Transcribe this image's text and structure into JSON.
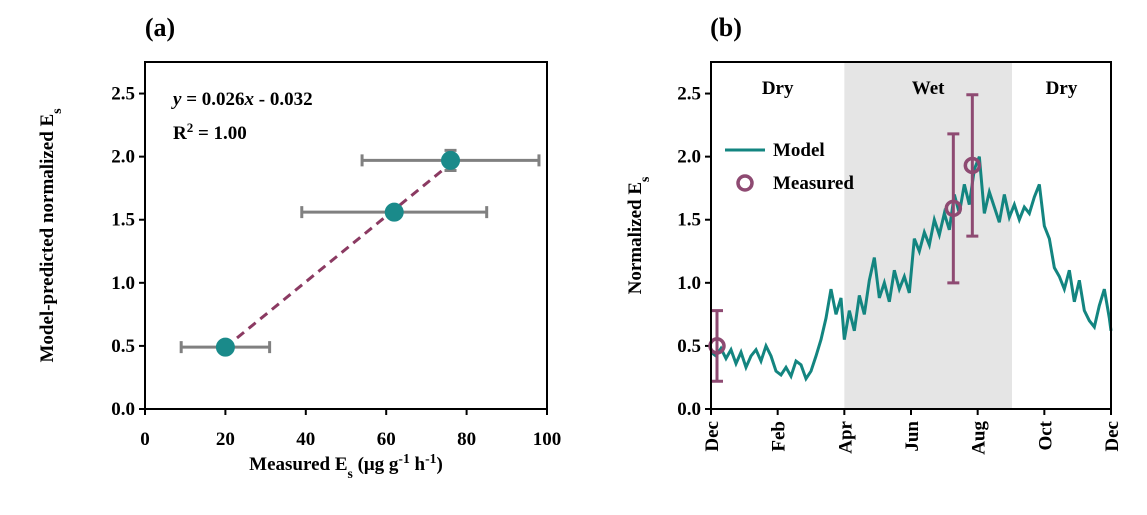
{
  "chart_data": [
    {
      "type": "scatter",
      "title": "(a)",
      "xlabel": [
        {
          "text": "Measured E"
        },
        {
          "text": "s",
          "shift": "sub"
        },
        {
          "text": " (μg g"
        },
        {
          "text": "-1",
          "shift": "super"
        },
        {
          "text": " h"
        },
        {
          "text": "-1",
          "shift": "super"
        },
        {
          "text": ")"
        }
      ],
      "ylabel": [
        {
          "text": "Model-predicted normalized E"
        },
        {
          "text": "s",
          "shift": "sub"
        }
      ],
      "xlim": [
        0,
        100
      ],
      "xticks": [
        0,
        20,
        40,
        60,
        80,
        100
      ],
      "ylim": [
        0,
        2.75
      ],
      "yticks": [
        {
          "value": 0,
          "label": "0.0"
        },
        {
          "value": 0.5,
          "label": "0.5"
        },
        {
          "value": 1,
          "label": "1.0"
        },
        {
          "value": 1.5,
          "label": "1.5"
        },
        {
          "value": 2,
          "label": "2.0"
        },
        {
          "value": 2.5,
          "label": "2.5"
        }
      ],
      "annotations": [
        [
          {
            "text": "y",
            "italic": true
          },
          {
            "text": " = 0.026"
          },
          {
            "text": "x",
            "italic": true
          },
          {
            "text": " - 0.032"
          }
        ],
        [
          {
            "text": "R"
          },
          {
            "text": "2",
            "shift": "super"
          },
          {
            "text": " = 1.00"
          }
        ]
      ],
      "series": [
        {
          "line": "dashed",
          "color": "#8b3a62",
          "x": [
            20,
            76
          ],
          "values": [
            0.488,
            1.944
          ]
        },
        {
          "marker": "filled-circle",
          "color": "#1a8a8a",
          "error_color": "#808080",
          "x": [
            20,
            62,
            76
          ],
          "values": [
            0.49,
            1.56,
            1.97
          ],
          "xerr": [
            11,
            23,
            22
          ],
          "yerr": [
            0.03,
            0.03,
            0.08
          ]
        }
      ]
    },
    {
      "type": "line",
      "title": "(b)",
      "ylabel": [
        {
          "text": "Normalized E"
        },
        {
          "text": "s",
          "shift": "sub"
        }
      ],
      "xlim": [
        0,
        12
      ],
      "xticks": [
        {
          "value": 0,
          "label": "Dec"
        },
        {
          "value": 2,
          "label": "Feb"
        },
        {
          "value": 4,
          "label": "Apr"
        },
        {
          "value": 6,
          "label": "Jun"
        },
        {
          "value": 8,
          "label": "Aug"
        },
        {
          "value": 10,
          "label": "Oct"
        },
        {
          "value": 12,
          "label": "Dec"
        }
      ],
      "ylim": [
        0,
        2.75
      ],
      "yticks": [
        {
          "value": 0,
          "label": "0.0"
        },
        {
          "value": 0.5,
          "label": "0.5"
        },
        {
          "value": 1,
          "label": "1.0"
        },
        {
          "value": 1.5,
          "label": "1.5"
        },
        {
          "value": 2,
          "label": "2.0"
        },
        {
          "value": 2.5,
          "label": "2.5"
        }
      ],
      "regions": [
        {
          "label": "Dry",
          "range": [
            0,
            4
          ]
        },
        {
          "label": "Wet",
          "range": [
            4,
            9.03
          ],
          "color": "#e5e5e5"
        },
        {
          "label": "Dry",
          "range": [
            9.03,
            12
          ]
        }
      ],
      "legend": "upper left",
      "series": [
        {
          "name": "Model",
          "line": "solid",
          "color": "#138580",
          "x": [
            0,
            0.15,
            0.3,
            0.45,
            0.6,
            0.75,
            0.9,
            1.05,
            1.2,
            1.35,
            1.5,
            1.65,
            1.8,
            1.95,
            2.1,
            2.25,
            2.4,
            2.55,
            2.7,
            2.85,
            3.0,
            3.15,
            3.3,
            3.45,
            3.6,
            3.75,
            3.9,
            4.0,
            4.15,
            4.3,
            4.45,
            4.6,
            4.75,
            4.9,
            5.05,
            5.2,
            5.35,
            5.5,
            5.65,
            5.8,
            5.95,
            6.1,
            6.25,
            6.4,
            6.55,
            6.7,
            6.85,
            7.0,
            7.15,
            7.3,
            7.45,
            7.6,
            7.75,
            7.9,
            8.05,
            8.2,
            8.35,
            8.5,
            8.65,
            8.8,
            8.95,
            9.1,
            9.25,
            9.4,
            9.55,
            9.7,
            9.85,
            10.0,
            10.15,
            10.3,
            10.45,
            10.6,
            10.75,
            10.9,
            11.05,
            11.2,
            11.35,
            11.5,
            11.65,
            11.8,
            11.95,
            12.0
          ],
          "values": [
            0.45,
            0.42,
            0.48,
            0.4,
            0.47,
            0.36,
            0.45,
            0.33,
            0.42,
            0.47,
            0.38,
            0.5,
            0.42,
            0.3,
            0.27,
            0.33,
            0.26,
            0.38,
            0.35,
            0.24,
            0.3,
            0.42,
            0.55,
            0.72,
            0.95,
            0.75,
            0.88,
            0.55,
            0.78,
            0.62,
            0.9,
            0.75,
            1.02,
            1.2,
            0.88,
            1.0,
            0.85,
            1.1,
            0.95,
            1.05,
            0.92,
            1.35,
            1.25,
            1.4,
            1.3,
            1.5,
            1.38,
            1.55,
            1.42,
            1.7,
            1.55,
            1.78,
            1.62,
            1.9,
            2.0,
            1.55,
            1.72,
            1.6,
            1.48,
            1.7,
            1.52,
            1.62,
            1.5,
            1.6,
            1.55,
            1.68,
            1.78,
            1.45,
            1.35,
            1.12,
            1.05,
            0.95,
            1.1,
            0.85,
            1.02,
            0.78,
            0.7,
            0.65,
            0.82,
            0.95,
            0.72,
            0.62
          ]
        },
        {
          "name": "Measured",
          "marker": "open-circle",
          "color": "#8e4a72",
          "x": [
            0.18,
            7.27,
            7.84
          ],
          "values": [
            0.5,
            1.59,
            1.93
          ],
          "yerr": [
            0.28,
            0.59,
            0.56
          ]
        }
      ]
    }
  ]
}
